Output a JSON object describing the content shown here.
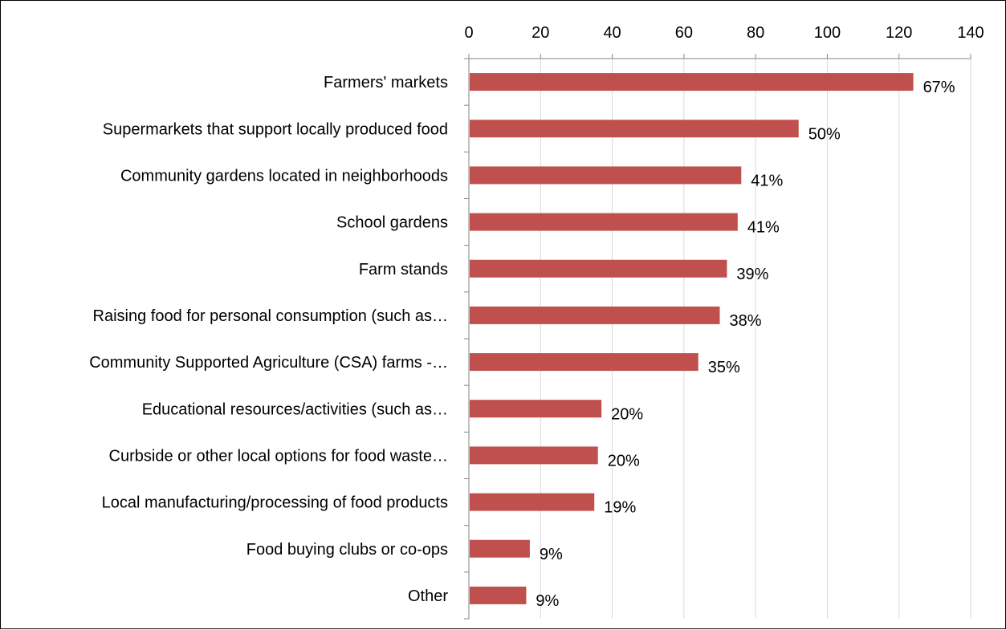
{
  "chart_data": {
    "type": "bar",
    "orientation": "horizontal",
    "categories": [
      "Farmers' markets",
      "Supermarkets that support locally produced food",
      "Community gardens located in neighborhoods",
      "School gardens",
      "Farm stands",
      "Raising food for personal consumption (such as…",
      "Community Supported Agriculture (CSA) farms  -…",
      "Educational resources/activities (such as…",
      "Curbside or other local options for food waste…",
      "Local manufacturing/processing of food products",
      "Food buying clubs or co-ops",
      "Other"
    ],
    "values": [
      124,
      92,
      76,
      75,
      72,
      70,
      64,
      37,
      36,
      35,
      17,
      16
    ],
    "data_labels": [
      "67%",
      "50%",
      "41%",
      "41%",
      "39%",
      "38%",
      "35%",
      "20%",
      "20%",
      "19%",
      "9%",
      "9%"
    ],
    "xlim": [
      0,
      140
    ],
    "x_ticks": [
      0,
      20,
      40,
      60,
      80,
      100,
      120,
      140
    ],
    "x_tick_labels": [
      "0",
      "20",
      "40",
      "60",
      "80",
      "100",
      "120",
      "140"
    ],
    "x_axis_position": "top",
    "grid": true,
    "title": "",
    "xlabel": "",
    "ylabel": "",
    "bar_color": "#c0504d"
  }
}
